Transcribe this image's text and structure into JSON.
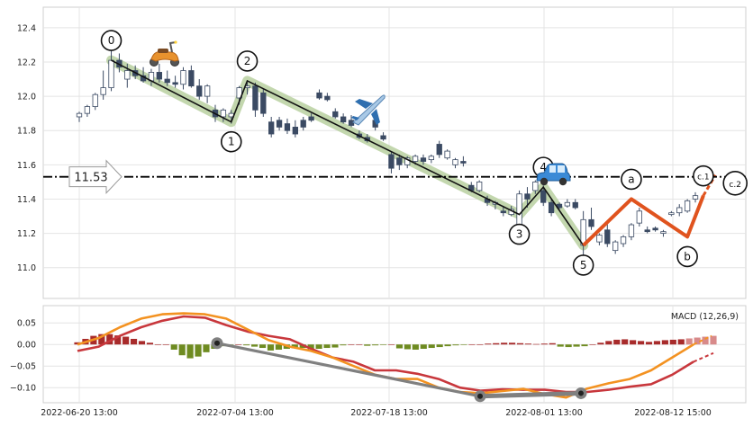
{
  "chart_data": [
    {
      "type": "candlestick",
      "panel": "price",
      "grid": true,
      "ylim": [
        10.82,
        12.52
      ],
      "y_ticks": [
        11.0,
        11.2,
        11.4,
        11.6,
        11.8,
        12.0,
        12.2,
        12.4
      ],
      "y_tick_labels": [
        "11.0",
        "11.2",
        "11.4",
        "11.6",
        "11.8",
        "12.0",
        "12.2",
        "12.4"
      ],
      "x_ticks": [
        "2022-06-20 13:00",
        "2022-07-04 13:00",
        "2022-07-18 13:00",
        "2022-08-01 13:00",
        "2022-08-12 15:00"
      ],
      "candles": [
        {
          "o": 11.88,
          "h": 11.91,
          "l": 11.85,
          "c": 11.9,
          "dir": "up"
        },
        {
          "o": 11.9,
          "h": 11.95,
          "l": 11.88,
          "c": 11.94,
          "dir": "up"
        },
        {
          "o": 11.94,
          "h": 12.02,
          "l": 11.92,
          "c": 12.01,
          "dir": "up"
        },
        {
          "o": 12.01,
          "h": 12.15,
          "l": 11.98,
          "c": 12.05,
          "dir": "up"
        },
        {
          "o": 12.05,
          "h": 12.33,
          "l": 12.03,
          "c": 12.21,
          "dir": "up"
        },
        {
          "o": 12.21,
          "h": 12.25,
          "l": 12.14,
          "c": 12.17,
          "dir": "down"
        },
        {
          "o": 12.1,
          "h": 12.19,
          "l": 12.05,
          "c": 12.15,
          "dir": "up"
        },
        {
          "o": 12.15,
          "h": 12.18,
          "l": 12.1,
          "c": 12.12,
          "dir": "down"
        },
        {
          "o": 12.12,
          "h": 12.17,
          "l": 12.08,
          "c": 12.09,
          "dir": "down"
        },
        {
          "o": 12.09,
          "h": 12.16,
          "l": 12.06,
          "c": 12.14,
          "dir": "up"
        },
        {
          "o": 12.14,
          "h": 12.19,
          "l": 12.08,
          "c": 12.1,
          "dir": "down"
        },
        {
          "o": 12.1,
          "h": 12.15,
          "l": 12.06,
          "c": 12.08,
          "dir": "down"
        },
        {
          "o": 12.08,
          "h": 12.12,
          "l": 12.05,
          "c": 12.07,
          "dir": "down"
        },
        {
          "o": 12.07,
          "h": 12.17,
          "l": 12.04,
          "c": 12.15,
          "dir": "up"
        },
        {
          "o": 12.15,
          "h": 12.18,
          "l": 12.05,
          "c": 12.06,
          "dir": "down"
        },
        {
          "o": 12.06,
          "h": 12.1,
          "l": 11.98,
          "c": 12.0,
          "dir": "down"
        },
        {
          "o": 12.0,
          "h": 12.07,
          "l": 11.96,
          "c": 12.06,
          "dir": "up"
        },
        {
          "o": 11.92,
          "h": 11.95,
          "l": 11.85,
          "c": 11.88,
          "dir": "down"
        },
        {
          "o": 11.88,
          "h": 11.93,
          "l": 11.85,
          "c": 11.92,
          "dir": "up"
        },
        {
          "o": 11.88,
          "h": 11.92,
          "l": 11.84,
          "c": 11.9,
          "dir": "up"
        },
        {
          "o": 11.99,
          "h": 12.06,
          "l": 11.95,
          "c": 12.05,
          "dir": "up"
        },
        {
          "o": 12.05,
          "h": 12.08,
          "l": 12.01,
          "c": 12.06,
          "dir": "up"
        },
        {
          "o": 12.06,
          "h": 12.08,
          "l": 11.88,
          "c": 11.92,
          "dir": "down"
        },
        {
          "o": 12.02,
          "h": 12.04,
          "l": 11.88,
          "c": 11.9,
          "dir": "down"
        },
        {
          "o": 11.85,
          "h": 11.88,
          "l": 11.76,
          "c": 11.78,
          "dir": "down"
        },
        {
          "o": 11.86,
          "h": 11.88,
          "l": 11.8,
          "c": 11.82,
          "dir": "down"
        },
        {
          "o": 11.84,
          "h": 11.87,
          "l": 11.78,
          "c": 11.8,
          "dir": "down"
        },
        {
          "o": 11.82,
          "h": 11.86,
          "l": 11.76,
          "c": 11.78,
          "dir": "down"
        },
        {
          "o": 11.86,
          "h": 11.88,
          "l": 11.8,
          "c": 11.82,
          "dir": "down"
        },
        {
          "o": 11.88,
          "h": 11.9,
          "l": 11.85,
          "c": 11.86,
          "dir": "down"
        },
        {
          "o": 12.02,
          "h": 12.04,
          "l": 11.98,
          "c": 11.99,
          "dir": "down"
        },
        {
          "o": 12.0,
          "h": 12.02,
          "l": 11.97,
          "c": 11.98,
          "dir": "down"
        },
        {
          "o": 11.91,
          "h": 11.93,
          "l": 11.87,
          "c": 11.88,
          "dir": "down"
        },
        {
          "o": 11.88,
          "h": 11.9,
          "l": 11.84,
          "c": 11.85,
          "dir": "down"
        },
        {
          "o": 11.86,
          "h": 11.89,
          "l": 11.82,
          "c": 11.83,
          "dir": "down"
        },
        {
          "o": 11.78,
          "h": 11.8,
          "l": 11.75,
          "c": 11.76,
          "dir": "down"
        },
        {
          "o": 11.76,
          "h": 11.78,
          "l": 11.73,
          "c": 11.74,
          "dir": "down"
        },
        {
          "o": 11.86,
          "h": 11.88,
          "l": 11.8,
          "c": 11.82,
          "dir": "down"
        },
        {
          "o": 11.77,
          "h": 11.79,
          "l": 11.74,
          "c": 11.75,
          "dir": "down"
        },
        {
          "o": 11.66,
          "h": 11.68,
          "l": 11.55,
          "c": 11.58,
          "dir": "down"
        },
        {
          "o": 11.64,
          "h": 11.66,
          "l": 11.57,
          "c": 11.6,
          "dir": "down"
        },
        {
          "o": 11.6,
          "h": 11.65,
          "l": 11.58,
          "c": 11.64,
          "dir": "up"
        },
        {
          "o": 11.62,
          "h": 11.66,
          "l": 11.6,
          "c": 11.65,
          "dir": "up"
        },
        {
          "o": 11.64,
          "h": 11.66,
          "l": 11.6,
          "c": 11.62,
          "dir": "down"
        },
        {
          "o": 11.63,
          "h": 11.66,
          "l": 11.61,
          "c": 11.65,
          "dir": "up"
        },
        {
          "o": 11.72,
          "h": 11.74,
          "l": 11.64,
          "c": 11.66,
          "dir": "down"
        },
        {
          "o": 11.64,
          "h": 11.69,
          "l": 11.63,
          "c": 11.68,
          "dir": "up"
        },
        {
          "o": 11.6,
          "h": 11.64,
          "l": 11.58,
          "c": 11.63,
          "dir": "up"
        },
        {
          "o": 11.62,
          "h": 11.65,
          "l": 11.59,
          "c": 11.61,
          "dir": "down"
        },
        {
          "o": 11.48,
          "h": 11.5,
          "l": 11.44,
          "c": 11.45,
          "dir": "down"
        },
        {
          "o": 11.45,
          "h": 11.51,
          "l": 11.44,
          "c": 11.5,
          "dir": "up"
        },
        {
          "o": 11.4,
          "h": 11.42,
          "l": 11.36,
          "c": 11.38,
          "dir": "down"
        },
        {
          "o": 11.37,
          "h": 11.39,
          "l": 11.34,
          "c": 11.38,
          "dir": "up"
        },
        {
          "o": 11.33,
          "h": 11.36,
          "l": 11.3,
          "c": 11.32,
          "dir": "down"
        },
        {
          "o": 11.31,
          "h": 11.36,
          "l": 11.3,
          "c": 11.34,
          "dir": "up"
        },
        {
          "o": 11.2,
          "h": 11.45,
          "l": 11.18,
          "c": 11.43,
          "dir": "up"
        },
        {
          "o": 11.43,
          "h": 11.47,
          "l": 11.35,
          "c": 11.4,
          "dir": "down"
        },
        {
          "o": 11.45,
          "h": 11.51,
          "l": 11.43,
          "c": 11.5,
          "dir": "up"
        },
        {
          "o": 11.45,
          "h": 11.48,
          "l": 11.36,
          "c": 11.38,
          "dir": "down"
        },
        {
          "o": 11.38,
          "h": 11.4,
          "l": 11.3,
          "c": 11.32,
          "dir": "down"
        },
        {
          "o": 11.37,
          "h": 11.38,
          "l": 11.34,
          "c": 11.35,
          "dir": "down"
        },
        {
          "o": 11.36,
          "h": 11.4,
          "l": 11.35,
          "c": 11.38,
          "dir": "up"
        },
        {
          "o": 11.38,
          "h": 11.4,
          "l": 11.34,
          "c": 11.35,
          "dir": "down"
        },
        {
          "o": 11.13,
          "h": 11.33,
          "l": 11.07,
          "c": 11.28,
          "dir": "up"
        },
        {
          "o": 11.28,
          "h": 11.35,
          "l": 11.22,
          "c": 11.24,
          "dir": "down"
        },
        {
          "o": 11.15,
          "h": 11.2,
          "l": 11.13,
          "c": 11.19,
          "dir": "up"
        },
        {
          "o": 11.22,
          "h": 11.26,
          "l": 11.12,
          "c": 11.14,
          "dir": "down"
        },
        {
          "o": 11.1,
          "h": 11.16,
          "l": 11.08,
          "c": 11.15,
          "dir": "up"
        },
        {
          "o": 11.14,
          "h": 11.19,
          "l": 11.12,
          "c": 11.18,
          "dir": "up"
        },
        {
          "o": 11.18,
          "h": 11.26,
          "l": 11.16,
          "c": 11.25,
          "dir": "up"
        },
        {
          "o": 11.26,
          "h": 11.35,
          "l": 11.24,
          "c": 11.33,
          "dir": "up"
        },
        {
          "o": 11.22,
          "h": 11.24,
          "l": 11.2,
          "c": 11.21,
          "dir": "down"
        },
        {
          "o": 11.23,
          "h": 11.24,
          "l": 11.21,
          "c": 11.22,
          "dir": "down"
        },
        {
          "o": 11.2,
          "h": 11.22,
          "l": 11.18,
          "c": 11.21,
          "dir": "up"
        },
        {
          "o": 11.31,
          "h": 11.33,
          "l": 11.3,
          "c": 11.32,
          "dir": "up"
        },
        {
          "o": 11.32,
          "h": 11.37,
          "l": 11.3,
          "c": 11.35,
          "dir": "up"
        },
        {
          "o": 11.33,
          "h": 11.4,
          "l": 11.32,
          "c": 11.39,
          "dir": "up"
        },
        {
          "o": 11.4,
          "h": 11.44,
          "l": 11.38,
          "c": 11.42,
          "dir": "up"
        }
      ],
      "wave_points": [
        {
          "label": "0",
          "value": 12.21
        },
        {
          "label": "1",
          "value": 11.85
        },
        {
          "label": "2",
          "value": 12.09
        },
        {
          "label": "3",
          "value": 11.31
        },
        {
          "label": "4",
          "value": 11.47
        },
        {
          "label": "5",
          "value": 11.13
        },
        {
          "label": "a",
          "value": 11.4
        },
        {
          "label": "b",
          "value": 11.18
        },
        {
          "label": "c.1",
          "value": 11.42
        },
        {
          "label": "c.2",
          "value": 11.54
        }
      ],
      "horizontal_line": {
        "value": 11.53,
        "label": "11.53"
      },
      "icons": [
        "scooter-icon",
        "airplane-icon",
        "car-icon"
      ],
      "colors": {
        "up_fill": "#ffffff",
        "down_fill": "#3b4a63",
        "candle_edge": "#3b4a63",
        "wave_main": "#111111",
        "wave_band": "#b8d0a0",
        "wave_corrective": "#e0531e",
        "hline": "#000000"
      }
    },
    {
      "type": "macd",
      "panel": "indicator",
      "label": "MACD (12,26,9)",
      "grid": true,
      "ylim": [
        -0.135,
        0.09
      ],
      "y_ticks": [
        0.05,
        0.0,
        -0.05,
        -0.1
      ],
      "y_tick_labels": [
        "0.05",
        "0.00",
        "−0.05",
        "−0.10"
      ],
      "macd_line": [
        0.0,
        0.015,
        0.04,
        0.06,
        0.07,
        0.072,
        0.07,
        0.06,
        0.035,
        0.01,
        -0.005,
        -0.015,
        -0.03,
        -0.05,
        -0.07,
        -0.08,
        -0.08,
        -0.1,
        -0.11,
        -0.113,
        -0.108,
        -0.103,
        -0.115,
        -0.123,
        -0.102,
        -0.09,
        -0.08,
        -0.06,
        -0.03,
        0.0
      ],
      "signal_line": [
        -0.015,
        -0.005,
        0.02,
        0.04,
        0.055,
        0.065,
        0.062,
        0.045,
        0.03,
        0.02,
        0.012,
        -0.01,
        -0.03,
        -0.04,
        -0.06,
        -0.06,
        -0.068,
        -0.08,
        -0.1,
        -0.107,
        -0.104,
        -0.105,
        -0.105,
        -0.11,
        -0.11,
        -0.105,
        -0.098,
        -0.092,
        -0.07,
        -0.04
      ],
      "histogram": [
        0.005,
        0.013,
        0.02,
        0.024,
        0.024,
        0.021,
        0.018,
        0.013,
        0.008,
        0.004,
        0.0,
        0.0,
        -0.012,
        -0.025,
        -0.032,
        -0.028,
        -0.018,
        -0.01,
        -0.004,
        -0.001,
        0.0,
        -0.002,
        -0.005,
        -0.008,
        -0.014,
        -0.012,
        -0.01,
        -0.009,
        -0.008,
        -0.011,
        -0.01,
        -0.008,
        -0.007,
        -0.002,
        0.0,
        0.0,
        -0.003,
        -0.002,
        -0.001,
        0.0,
        -0.009,
        -0.011,
        -0.012,
        -0.01,
        -0.008,
        -0.006,
        -0.004,
        -0.002,
        -0.001,
        0.0,
        0.0,
        0.002,
        0.003,
        0.004,
        0.004,
        0.003,
        0.002,
        0.001,
        0.002,
        0.003,
        -0.005,
        -0.006,
        -0.005,
        -0.004,
        0.0,
        0.004,
        0.008,
        0.011,
        0.012,
        0.01,
        0.008,
        0.006,
        0.008,
        0.01,
        0.011,
        0.012,
        0.014,
        0.016,
        0.018,
        0.02
      ],
      "divergence_points": [
        0.003,
        -0.12,
        -0.113
      ],
      "colors": {
        "macd": "#f39221",
        "signal": "#c8373c",
        "hist_pos": "#a82b2b",
        "hist_neg": "#6e8b21",
        "divergence": "#808080"
      }
    }
  ]
}
